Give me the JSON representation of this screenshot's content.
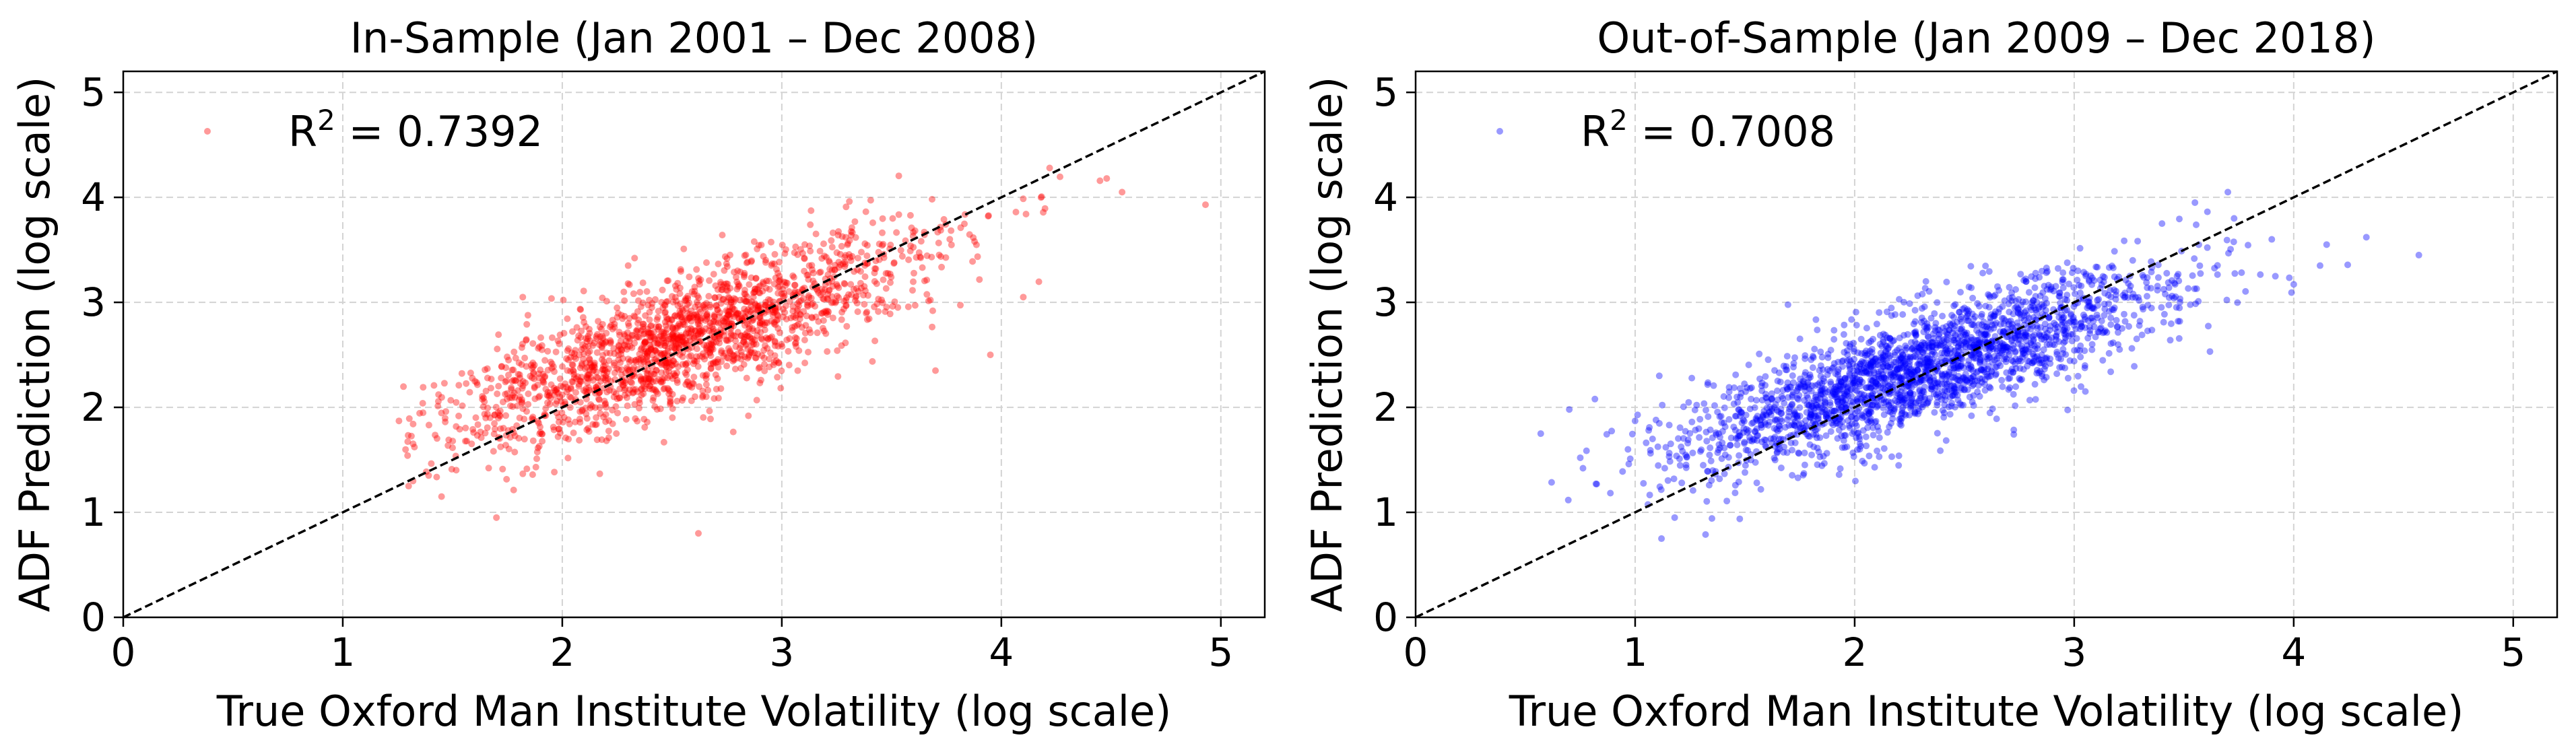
{
  "chart_data": [
    {
      "type": "scatter",
      "title": "In-Sample (Jan 2001 – Dec 2008)",
      "xlabel": "True Oxford Man Institute Volatility (log scale)",
      "ylabel": "ADF Prediction (log scale)",
      "xlim": [
        0,
        5.2
      ],
      "ylim": [
        0,
        5.2
      ],
      "xticks": [
        "0",
        "1",
        "2",
        "3",
        "4",
        "5"
      ],
      "yticks": [
        "0",
        "1",
        "2",
        "3",
        "4",
        "5"
      ],
      "grid": true,
      "color": "#ff0000",
      "legend": {
        "position": "top-left",
        "prefix": "R",
        "sup": "2",
        "suffix": " = 0.7392"
      },
      "reference_line": "y = x",
      "cloud": {
        "count": 1900,
        "x_mean": 2.55,
        "x_sd": 0.55,
        "slope": 0.74,
        "intercept": 0.75,
        "resid_sd": 0.3,
        "x_min": 1.25,
        "x_max": 4.95,
        "seed": 11
      },
      "points": [
        [
          4.93,
          3.93
        ],
        [
          4.55,
          4.05
        ],
        [
          4.48,
          4.18
        ],
        [
          4.22,
          4.28
        ],
        [
          4.1,
          3.05
        ],
        [
          3.7,
          2.35
        ],
        [
          3.95,
          2.5
        ],
        [
          1.3,
          1.25
        ],
        [
          1.45,
          1.15
        ],
        [
          1.7,
          0.95
        ],
        [
          2.62,
          0.8
        ],
        [
          1.82,
          3.05
        ],
        [
          2.3,
          3.35
        ]
      ]
    },
    {
      "type": "scatter",
      "title": "Out-of-Sample (Jan 2009 – Dec 2018)",
      "xlabel": "True Oxford Man Institute Volatility (log scale)",
      "ylabel": "ADF Prediction (log scale)",
      "xlim": [
        0,
        5.2
      ],
      "ylim": [
        0,
        5.2
      ],
      "xticks": [
        "0",
        "1",
        "2",
        "3",
        "4",
        "5"
      ],
      "yticks": [
        "0",
        "1",
        "2",
        "3",
        "4",
        "5"
      ],
      "grid": true,
      "color": "#0000ff",
      "legend": {
        "position": "top-left",
        "prefix": "R",
        "sup": "2",
        "suffix": " = 0.7008"
      },
      "reference_line": "y = x",
      "cloud": {
        "count": 2300,
        "x_mean": 2.3,
        "x_sd": 0.55,
        "slope": 0.66,
        "intercept": 0.85,
        "resid_sd": 0.28,
        "x_min": 0.55,
        "x_max": 4.6,
        "seed": 29
      },
      "points": [
        [
          4.57,
          3.45
        ],
        [
          4.15,
          3.55
        ],
        [
          4.12,
          3.35
        ],
        [
          0.57,
          1.75
        ],
        [
          0.7,
          1.98
        ],
        [
          0.75,
          1.52
        ],
        [
          1.12,
          0.75
        ],
        [
          1.18,
          0.95
        ],
        [
          3.7,
          4.05
        ],
        [
          3.4,
          3.75
        ],
        [
          3.55,
          3.95
        ],
        [
          3.9,
          3.6
        ]
      ]
    }
  ]
}
